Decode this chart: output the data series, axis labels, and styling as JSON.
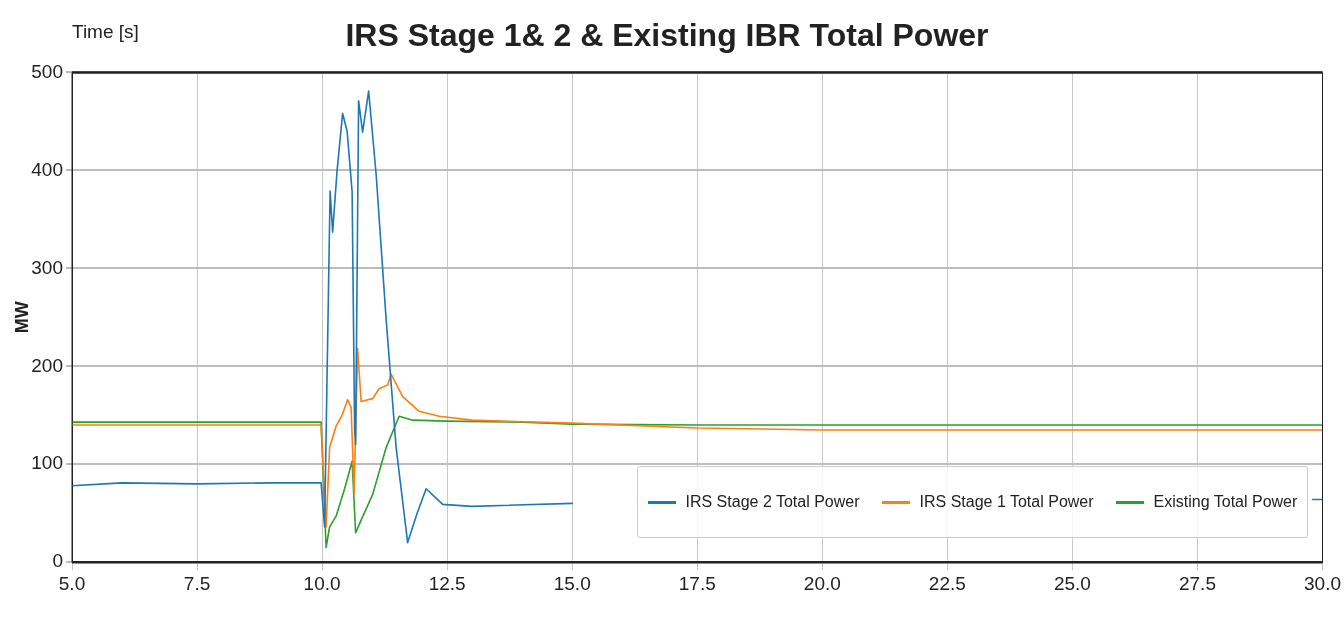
{
  "chart_data": {
    "type": "line",
    "title": "IRS Stage 1& 2 & Existing IBR Total Power",
    "ylabel": "MW",
    "annotations": [
      "Time [s]"
    ],
    "xlim": [
      5,
      30
    ],
    "xticks": [
      {
        "value": 5,
        "label": "5.0"
      },
      {
        "value": 7.5,
        "label": "7.5"
      },
      {
        "value": 10,
        "label": "10.0"
      },
      {
        "value": 12.5,
        "label": "12.5"
      },
      {
        "value": 15,
        "label": "15.0"
      },
      {
        "value": 17.5,
        "label": "17.5"
      },
      {
        "value": 20,
        "label": "20.0"
      },
      {
        "value": 22.5,
        "label": "22.5"
      },
      {
        "value": 25,
        "label": "25.0"
      },
      {
        "value": 27.5,
        "label": "27.5"
      },
      {
        "value": 30,
        "label": "30.0"
      }
    ],
    "ylim": [
      0,
      500
    ],
    "yticks": [
      0,
      100,
      200,
      300,
      400,
      500
    ],
    "grid": true,
    "legend": "bottom right",
    "marker": "none",
    "line_style": "solid",
    "series": [
      {
        "name": "IRS Stage 2 Total Power",
        "color": "#1f77b4",
        "x": [
          5,
          6,
          7.5,
          9,
          9.98,
          10.05,
          10.16,
          10.21,
          10.3,
          10.41,
          10.5,
          10.6,
          10.65,
          10.67,
          10.73,
          10.81,
          10.93,
          11.08,
          11.28,
          11.48,
          11.71,
          11.9,
          12.08,
          12.41,
          13,
          15,
          17.5,
          20,
          25,
          29.8,
          30
        ],
        "values": [
          78,
          81,
          80,
          81,
          81,
          36,
          379,
          337,
          400,
          458,
          440,
          378,
          136,
          120,
          471,
          439,
          481,
          396,
          248,
          117,
          20,
          50,
          75,
          59,
          57,
          60,
          null,
          null,
          null,
          64,
          64
        ]
      },
      {
        "name": "IRS Stage 1 Total Power",
        "color": "#ff7f0e",
        "x": [
          5,
          7.5,
          9.98,
          10.08,
          10.15,
          10.28,
          10.4,
          10.51,
          10.58,
          10.64,
          10.71,
          10.78,
          11.01,
          11.14,
          11.31,
          11.38,
          11.61,
          11.94,
          12.34,
          13,
          15,
          17.5,
          20,
          25,
          30
        ],
        "values": [
          140,
          140,
          140,
          36,
          117,
          139,
          150,
          166,
          158,
          70,
          218,
          164,
          167,
          177,
          181,
          192,
          169,
          154,
          149,
          145,
          142,
          137,
          135,
          135,
          135
        ]
      },
      {
        "name": "Existing Total Power",
        "color": "#2ca02c",
        "x": [
          5,
          7.5,
          9.98,
          10.08,
          10.15,
          10.28,
          10.45,
          10.6,
          10.67,
          10.78,
          11.01,
          11.28,
          11.54,
          11.81,
          12.5,
          14,
          15,
          17.5,
          20,
          25,
          30
        ],
        "values": [
          143,
          143,
          143,
          15,
          36,
          47,
          75,
          103,
          30,
          43,
          69,
          117,
          149,
          145,
          144,
          143,
          141,
          140,
          140,
          140,
          140
        ]
      }
    ]
  }
}
